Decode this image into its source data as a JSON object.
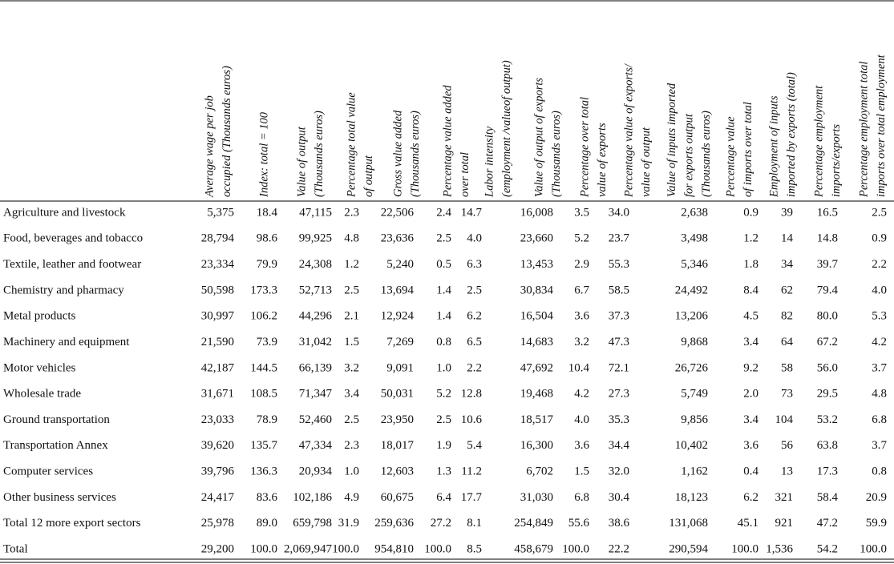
{
  "header": {
    "columns": [
      [
        "Average wage per job",
        "occupied (Thousands euros)"
      ],
      [
        "Index: total = 100"
      ],
      [
        "Value of output",
        "(Thousands euros)"
      ],
      [
        "Percentage total value",
        "of output"
      ],
      [
        "Gross value added",
        "(Thousands euros)"
      ],
      [
        "Percentage value added",
        "over total"
      ],
      [
        "Labor intensity",
        "(employment /valueof output)"
      ],
      [
        "Value of output of exports",
        "(Thousands euros)"
      ],
      [
        "Percentage over total",
        "value of exports"
      ],
      [
        "Percentage value of exports/",
        "value of output"
      ],
      [
        "Value of inputs imported",
        "for exports output",
        "(Thousands euros)"
      ],
      [
        "Percentage value",
        "of imports over total"
      ],
      [
        "Employment of inputs",
        "imported by exports (total)"
      ],
      [
        "Percentage employment",
        "imports/exports"
      ],
      [
        "Percentage employment total",
        "imports over total employment"
      ]
    ]
  },
  "table": {
    "rows": [
      {
        "label": "Agriculture and livestock",
        "cells": [
          "5,375",
          "18.4",
          "47,115",
          "2.3",
          "22,506",
          "2.4",
          "14.7",
          "16,008",
          "3.5",
          "34.0",
          "2,638",
          "0.9",
          "39",
          "16.5",
          "2.5"
        ]
      },
      {
        "label": "Food, beverages and tobacco",
        "cells": [
          "28,794",
          "98.6",
          "99,925",
          "4.8",
          "23,636",
          "2.5",
          "4.0",
          "23,660",
          "5.2",
          "23.7",
          "3,498",
          "1.2",
          "14",
          "14.8",
          "0.9"
        ]
      },
      {
        "label": "Textile, leather and footwear",
        "cells": [
          "23,334",
          "79.9",
          "24,308",
          "1.2",
          "5,240",
          "0.5",
          "6.3",
          "13,453",
          "2.9",
          "55.3",
          "5,346",
          "1.8",
          "34",
          "39.7",
          "2.2"
        ]
      },
      {
        "label": "Chemistry and pharmacy",
        "cells": [
          "50,598",
          "173.3",
          "52,713",
          "2.5",
          "13,694",
          "1.4",
          "2.5",
          "30,834",
          "6.7",
          "58.5",
          "24,492",
          "8.4",
          "62",
          "79.4",
          "4.0"
        ]
      },
      {
        "label": "Metal products",
        "cells": [
          "30,997",
          "106.2",
          "44,296",
          "2.1",
          "12,924",
          "1.4",
          "6.2",
          "16,504",
          "3.6",
          "37.3",
          "13,206",
          "4.5",
          "82",
          "80.0",
          "5.3"
        ]
      },
      {
        "label": "Machinery and equipment",
        "cells": [
          "21,590",
          "73.9",
          "31,042",
          "1.5",
          "7,269",
          "0.8",
          "6.5",
          "14,683",
          "3.2",
          "47.3",
          "9,868",
          "3.4",
          "64",
          "67.2",
          "4.2"
        ]
      },
      {
        "label": "Motor vehicles",
        "cells": [
          "42,187",
          "144.5",
          "66,139",
          "3.2",
          "9,091",
          "1.0",
          "2.2",
          "47,692",
          "10.4",
          "72.1",
          "26,726",
          "9.2",
          "58",
          "56.0",
          "3.7"
        ]
      },
      {
        "label": "Wholesale trade",
        "cells": [
          "31,671",
          "108.5",
          "71,347",
          "3.4",
          "50,031",
          "5.2",
          "12.8",
          "19,468",
          "4.2",
          "27.3",
          "5,749",
          "2.0",
          "73",
          "29.5",
          "4.8"
        ]
      },
      {
        "label": "Ground transportation",
        "cells": [
          "23,033",
          "78.9",
          "52,460",
          "2.5",
          "23,950",
          "2.5",
          "10.6",
          "18,517",
          "4.0",
          "35.3",
          "9,856",
          "3.4",
          "104",
          "53.2",
          "6.8"
        ]
      },
      {
        "label": "Transportation Annex",
        "cells": [
          "39,620",
          "135.7",
          "47,334",
          "2.3",
          "18,017",
          "1.9",
          "5.4",
          "16,300",
          "3.6",
          "34.4",
          "10,402",
          "3.6",
          "56",
          "63.8",
          "3.7"
        ]
      },
      {
        "label": "Computer services",
        "cells": [
          "39,796",
          "136.3",
          "20,934",
          "1.0",
          "12,603",
          "1.3",
          "11.2",
          "6,702",
          "1.5",
          "32.0",
          "1,162",
          "0.4",
          "13",
          "17.3",
          "0.8"
        ]
      },
      {
        "label": "Other business services",
        "cells": [
          "24,417",
          "83.6",
          "102,186",
          "4.9",
          "60,675",
          "6.4",
          "17.7",
          "31,030",
          "6.8",
          "30.4",
          "18,123",
          "6.2",
          "321",
          "58.4",
          "20.9"
        ]
      },
      {
        "label": "Total 12 more export sectors",
        "cells": [
          "25,978",
          "89.0",
          "659,798",
          "31.9",
          "259,636",
          "27.2",
          "8.1",
          "254,849",
          "55.6",
          "38.6",
          "131,068",
          "45.1",
          "921",
          "47.2",
          "59.9"
        ]
      },
      {
        "label": "Total",
        "cells": [
          "29,200",
          "100.0",
          "2,069,947",
          "100.0",
          "954,810",
          "100.0",
          "8.5",
          "458,679",
          "100.0",
          "22.2",
          "290,594",
          "100.0",
          "1,536",
          "54.2",
          "100.0"
        ]
      }
    ]
  }
}
